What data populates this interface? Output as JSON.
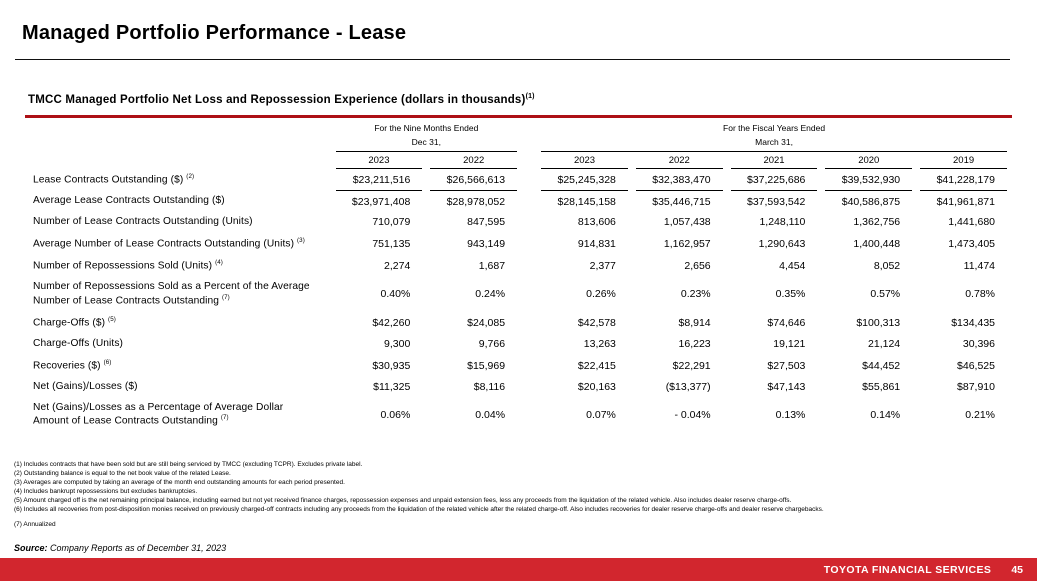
{
  "page": {
    "title": "Managed Portfolio Performance - Lease"
  },
  "table": {
    "title": "TMCC Managed Portfolio Net Loss and Repossession Experience (dollars in thousands)",
    "title_sup": "(1)",
    "accent_color": "#AD1016",
    "col_groups": [
      {
        "label": "For the Nine Months Ended",
        "sub": "Dec 31,",
        "years": [
          "2023",
          "2022"
        ]
      },
      {
        "label": "For the Fiscal Years Ended",
        "sub": "March 31,",
        "years": [
          "2023",
          "2022",
          "2021",
          "2020",
          "2019"
        ]
      }
    ],
    "rows": [
      {
        "label": "Lease Contracts Outstanding ($)",
        "sup": "(2)",
        "values": [
          "$23,211,516",
          "$26,566,613",
          "$25,245,328",
          "$32,383,470",
          "$37,225,686",
          "$39,532,930",
          "$41,228,179"
        ]
      },
      {
        "label": "Average Lease Contracts Outstanding ($)",
        "sup": "",
        "values": [
          "$23,971,408",
          "$28,978,052",
          "$28,145,158",
          "$35,446,715",
          "$37,593,542",
          "$40,586,875",
          "$41,961,871"
        ]
      },
      {
        "label": "Number of Lease Contracts Outstanding (Units)",
        "sup": "",
        "values": [
          "710,079",
          "847,595",
          "813,606",
          "1,057,438",
          "1,248,110",
          "1,362,756",
          "1,441,680"
        ]
      },
      {
        "label": "Average Number of Lease Contracts Outstanding (Units)",
        "sup": "(3)",
        "values": [
          "751,135",
          "943,149",
          "914,831",
          "1,162,957",
          "1,290,643",
          "1,400,448",
          "1,473,405"
        ]
      },
      {
        "label": "Number of Repossessions Sold (Units)",
        "sup": "(4)",
        "values": [
          "2,274",
          "1,687",
          "2,377",
          "2,656",
          "4,454",
          "8,052",
          "11,474"
        ]
      },
      {
        "label": "Number of Repossessions Sold as a Percent of the Average",
        "label2": "Number of Lease Contracts Outstanding",
        "sup": "(7)",
        "values": [
          "0.40%",
          "0.24%",
          "0.26%",
          "0.23%",
          "0.35%",
          "0.57%",
          "0.78%"
        ]
      },
      {
        "label": "Charge-Offs ($)",
        "sup": "(5)",
        "values": [
          "$42,260",
          "$24,085",
          "$42,578",
          "$8,914",
          "$74,646",
          "$100,313",
          "$134,435"
        ]
      },
      {
        "label": "Charge-Offs (Units)",
        "sup": "",
        "values": [
          "9,300",
          "9,766",
          "13,263",
          "16,223",
          "19,121",
          "21,124",
          "30,396"
        ]
      },
      {
        "label": "Recoveries ($)",
        "sup": "(6)",
        "values": [
          "$30,935",
          "$15,969",
          "$22,415",
          "$22,291",
          "$27,503",
          "$44,452",
          "$46,525"
        ]
      },
      {
        "label": "Net (Gains)/Losses ($)",
        "sup": "",
        "values": [
          "$11,325",
          "$8,116",
          "$20,163",
          "($13,377)",
          "$47,143",
          "$55,861",
          "$87,910"
        ]
      },
      {
        "label": "Net (Gains)/Losses as a Percentage of Average Dollar",
        "label2": "Amount of Lease Contracts Outstanding",
        "sup": "(7)",
        "values": [
          "0.06%",
          "0.04%",
          "0.07%",
          "- 0.04%",
          "0.13%",
          "0.14%",
          "0.21%"
        ]
      }
    ]
  },
  "footnotes": [
    "(1) Includes contracts that have been sold but are still being serviced by TMCC (excluding TCPR). Excludes private label.",
    "(2) Outstanding balance is equal to the net book value of the related Lease.",
    "(3) Averages are computed by taking an average of the month end outstanding amounts for each period presented.",
    "(4) Includes bankrupt repossessions but excludes bankruptcies.",
    "(5) Amount charged off is the net remaining principal balance, including earned but not yet received finance charges, repossession expenses and unpaid extension fees, less any proceeds from the liquidation of the related vehicle. Also includes dealer reserve charge-offs.",
    "(6) Includes all recoveries from post-disposition monies received on previously charged-off contracts including any proceeds from the liquidation of the related vehicle after the related charge-off.  Also includes recoveries for dealer reserve charge-offs and dealer reserve chargebacks."
  ],
  "annualized_note": "(7) Annualized",
  "source": {
    "label": "Source:",
    "text": " Company Reports as of December 31, 2023"
  },
  "footer": {
    "brand": "TOYOTA FINANCIAL SERVICES",
    "page_number": "45",
    "bar_color": "#D2262E"
  }
}
